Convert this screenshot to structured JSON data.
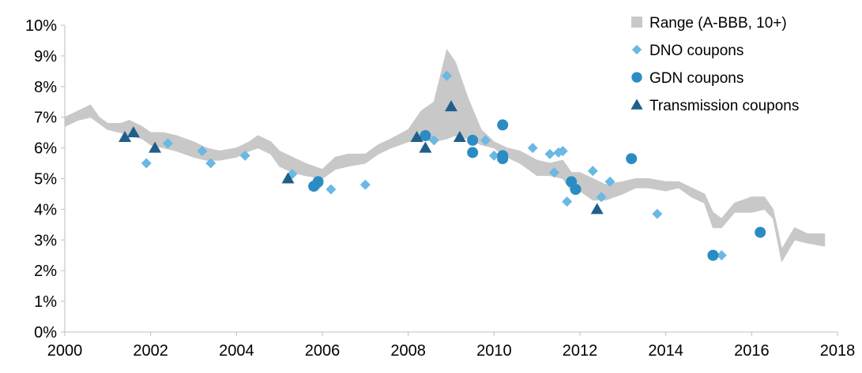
{
  "chart_data": {
    "type": "scatter",
    "title": "",
    "xlabel": "",
    "ylabel": "",
    "xlim": [
      2000,
      2018
    ],
    "ylim": [
      0,
      10
    ],
    "grid": false,
    "legend_position": "top-right",
    "x_ticks": [
      "2000",
      "2002",
      "2004",
      "2006",
      "2008",
      "2010",
      "2012",
      "2014",
      "2016",
      "2018"
    ],
    "y_ticks": [
      "0%",
      "1%",
      "2%",
      "3%",
      "4%",
      "5%",
      "6%",
      "7%",
      "8%",
      "9%",
      "10%"
    ],
    "colors": {
      "range": "#c8c8c8",
      "dno": "#6ab8e4",
      "gdn": "#2b8cc4",
      "transmission": "#1f5f8b"
    },
    "range_band": {
      "name": "Range (A-BBB, 10+)",
      "x": [
        2000.0,
        2000.3,
        2000.6,
        2000.8,
        2001.0,
        2001.3,
        2001.5,
        2001.8,
        2002.0,
        2002.3,
        2002.6,
        2003.0,
        2003.3,
        2003.6,
        2004.0,
        2004.3,
        2004.5,
        2004.8,
        2005.0,
        2005.3,
        2005.6,
        2006.0,
        2006.3,
        2006.6,
        2007.0,
        2007.3,
        2007.6,
        2008.0,
        2008.3,
        2008.6,
        2008.9,
        2009.1,
        2009.4,
        2009.7,
        2010.0,
        2010.3,
        2010.6,
        2011.0,
        2011.3,
        2011.6,
        2011.8,
        2012.0,
        2012.3,
        2012.6,
        2013.0,
        2013.3,
        2013.6,
        2014.0,
        2014.3,
        2014.6,
        2014.9,
        2015.1,
        2015.3,
        2015.6,
        2016.0,
        2016.3,
        2016.5,
        2016.7,
        2017.0,
        2017.3,
        2017.7
      ],
      "low": [
        6.7,
        6.9,
        7.0,
        6.8,
        6.6,
        6.5,
        6.4,
        6.3,
        6.1,
        6.0,
        5.9,
        5.7,
        5.6,
        5.6,
        5.7,
        5.9,
        6.0,
        5.8,
        5.4,
        5.2,
        5.1,
        5.0,
        5.3,
        5.4,
        5.5,
        5.8,
        6.0,
        6.2,
        6.3,
        6.2,
        6.3,
        6.4,
        6.3,
        6.1,
        6.0,
        5.7,
        5.5,
        5.1,
        5.1,
        5.0,
        4.6,
        4.6,
        4.3,
        4.3,
        4.5,
        4.7,
        4.7,
        4.6,
        4.7,
        4.4,
        4.2,
        3.4,
        3.4,
        3.9,
        3.9,
        4.0,
        3.7,
        2.3,
        3.0,
        2.9,
        2.8
      ],
      "high": [
        7.0,
        7.2,
        7.4,
        7.0,
        6.8,
        6.8,
        6.9,
        6.7,
        6.5,
        6.5,
        6.4,
        6.2,
        6.0,
        5.9,
        6.0,
        6.2,
        6.4,
        6.2,
        5.9,
        5.7,
        5.5,
        5.3,
        5.7,
        5.8,
        5.8,
        6.1,
        6.3,
        6.6,
        7.2,
        7.5,
        9.2,
        8.8,
        7.6,
        6.6,
        6.2,
        6.0,
        5.9,
        5.6,
        5.5,
        5.6,
        5.2,
        5.2,
        5.0,
        4.8,
        4.9,
        5.0,
        5.0,
        4.9,
        4.9,
        4.7,
        4.5,
        3.9,
        3.7,
        4.2,
        4.4,
        4.4,
        4.0,
        2.7,
        3.4,
        3.2,
        3.2
      ]
    },
    "series": [
      {
        "name": "DNO coupons",
        "marker": "diamond",
        "points": [
          [
            2001.9,
            5.5
          ],
          [
            2002.4,
            6.15
          ],
          [
            2003.2,
            5.9
          ],
          [
            2003.4,
            5.5
          ],
          [
            2004.2,
            5.75
          ],
          [
            2005.3,
            5.15
          ],
          [
            2005.9,
            4.8
          ],
          [
            2006.2,
            4.65
          ],
          [
            2007.0,
            4.8
          ],
          [
            2008.6,
            6.25
          ],
          [
            2008.9,
            8.35
          ],
          [
            2009.8,
            6.25
          ],
          [
            2010.0,
            5.75
          ],
          [
            2010.9,
            6.0
          ],
          [
            2011.3,
            5.8
          ],
          [
            2011.4,
            5.2
          ],
          [
            2011.5,
            5.85
          ],
          [
            2011.6,
            5.9
          ],
          [
            2011.7,
            4.25
          ],
          [
            2012.3,
            5.25
          ],
          [
            2012.5,
            4.4
          ],
          [
            2012.7,
            4.9
          ],
          [
            2013.8,
            3.85
          ],
          [
            2015.3,
            2.5
          ]
        ]
      },
      {
        "name": "GDN coupons",
        "marker": "circle",
        "points": [
          [
            2005.8,
            4.75
          ],
          [
            2005.9,
            4.9
          ],
          [
            2008.4,
            6.4
          ],
          [
            2009.5,
            6.25
          ],
          [
            2009.5,
            5.85
          ],
          [
            2010.2,
            6.75
          ],
          [
            2010.2,
            5.75
          ],
          [
            2010.2,
            5.65
          ],
          [
            2011.8,
            4.9
          ],
          [
            2011.9,
            4.65
          ],
          [
            2013.2,
            5.65
          ],
          [
            2015.1,
            2.5
          ],
          [
            2016.2,
            3.25
          ]
        ]
      },
      {
        "name": "Transmission coupons",
        "marker": "triangle",
        "points": [
          [
            2001.4,
            6.35
          ],
          [
            2001.6,
            6.5
          ],
          [
            2002.1,
            6.0
          ],
          [
            2005.2,
            5.0
          ],
          [
            2008.2,
            6.35
          ],
          [
            2008.4,
            6.0
          ],
          [
            2009.0,
            7.35
          ],
          [
            2009.2,
            6.35
          ],
          [
            2012.4,
            4.0
          ]
        ]
      }
    ]
  }
}
